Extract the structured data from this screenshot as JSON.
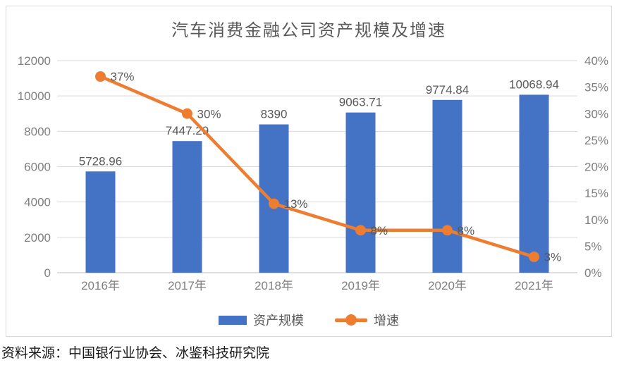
{
  "title": "汽车消费金融公司资产规模及增速",
  "source_note": "资料来源：中国银行业协会、冰鉴科技研究院",
  "legend": {
    "items": [
      {
        "label": "资产规模",
        "marker": "bar-swatch"
      },
      {
        "label": "增速",
        "marker": "line-dot-swatch"
      }
    ]
  },
  "colors": {
    "bar": "#4472c4",
    "line": "#ed7d31",
    "grid": "#d9d9d9",
    "axis_line": "#bfbfbf",
    "tick_text": "#7f7f7f",
    "label_text": "#595959",
    "title_text": "#595959",
    "frame_border": "#d9d9d9"
  },
  "chart_data": {
    "type": "bar",
    "subtype": "bar-line-combo",
    "title": "汽车消费金融公司资产规模及增速",
    "categories": [
      "2016年",
      "2017年",
      "2018年",
      "2019年",
      "2020年",
      "2021年"
    ],
    "series": [
      {
        "name": "资产规模",
        "type": "bar",
        "axis": "left",
        "values": [
          5728.96,
          7447.29,
          8390,
          9063.71,
          9774.84,
          10068.94
        ],
        "labels": [
          "5728.96",
          "7447.29",
          "8390",
          "9063.71",
          "9774.84",
          "10068.94"
        ]
      },
      {
        "name": "增速",
        "type": "line",
        "axis": "right",
        "values": [
          37,
          30,
          13,
          8,
          8,
          3
        ],
        "labels": [
          "37%",
          "30%",
          "13%",
          "8%",
          "8%",
          "3%"
        ]
      }
    ],
    "left_axis": {
      "min": 0,
      "max": 12000,
      "ticks": [
        "12000",
        "10000",
        "8000",
        "6000",
        "4000",
        "2000",
        "0"
      ]
    },
    "right_axis": {
      "min": 0,
      "max": 40,
      "ticks": [
        "40%",
        "35%",
        "30%",
        "25%",
        "20%",
        "15%",
        "10%",
        "5%",
        "0%"
      ]
    },
    "grid": true,
    "legend_position": "bottom"
  }
}
